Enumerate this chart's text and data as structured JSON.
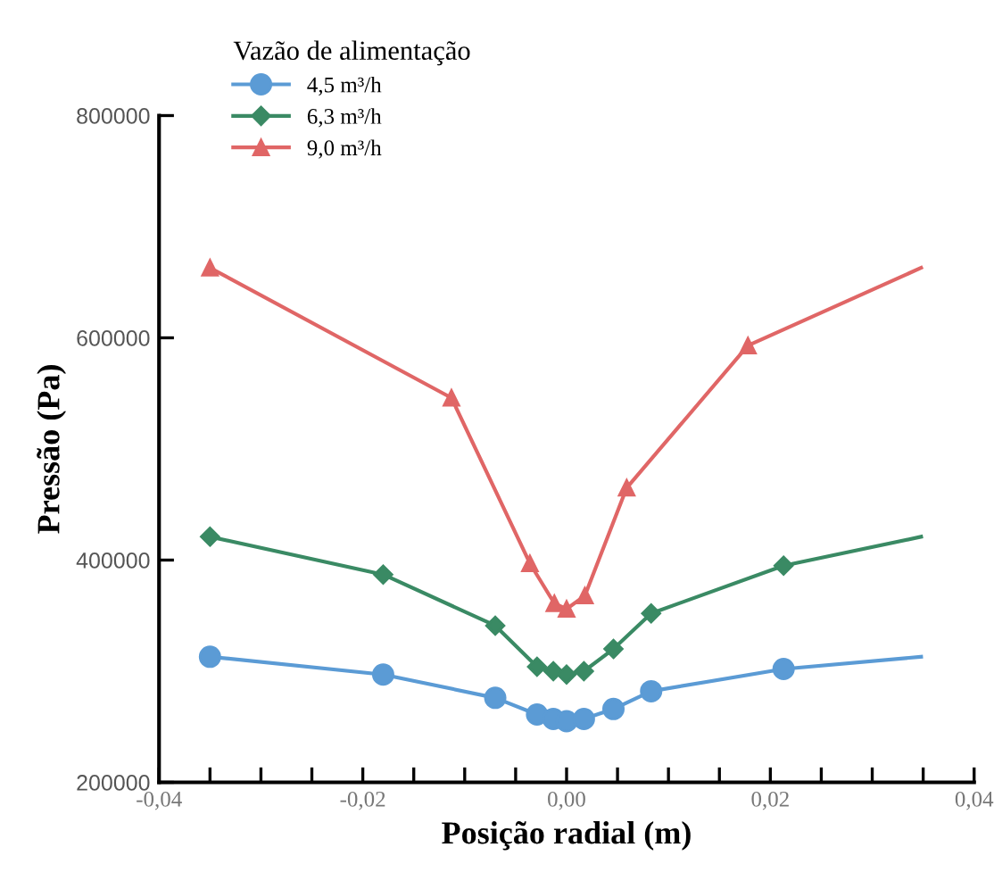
{
  "chart_data": {
    "type": "line",
    "xlabel": "Posição radial (m)",
    "ylabel": "Pressão (Pa)",
    "legend_title": "Vazão de alimentação",
    "legend": "top left",
    "grid": false,
    "xlim": [
      -0.04,
      0.04
    ],
    "ylim": [
      200000,
      800000
    ],
    "xticks": [
      {
        "value": -0.04,
        "label": "-0,04"
      },
      {
        "value": -0.035,
        "label": null
      },
      {
        "value": -0.03,
        "label": null
      },
      {
        "value": -0.025,
        "label": null
      },
      {
        "value": -0.02,
        "label": "-0,02"
      },
      {
        "value": -0.015,
        "label": null
      },
      {
        "value": -0.01,
        "label": null
      },
      {
        "value": -0.005,
        "label": null
      },
      {
        "value": 0,
        "label": "0,00"
      },
      {
        "value": 0.005,
        "label": null
      },
      {
        "value": 0.01,
        "label": null
      },
      {
        "value": 0.015,
        "label": null
      },
      {
        "value": 0.02,
        "label": "0,02"
      },
      {
        "value": 0.025,
        "label": null
      },
      {
        "value": 0.03,
        "label": null
      },
      {
        "value": 0.035,
        "label": null
      },
      {
        "value": 0.04,
        "label": "0,04"
      }
    ],
    "yticks": [
      200000,
      400000,
      600000,
      800000
    ],
    "series": [
      {
        "name": "4,5 m³/h",
        "color": "#5b9bd5",
        "marker": "circle",
        "x": [
          -0.035,
          -0.018,
          -0.007,
          -0.0029,
          -0.0013,
          0,
          0.0017,
          0.0046,
          0.0083,
          0.0213,
          0.0348
        ],
        "values": [
          313000,
          297000,
          276000,
          261000,
          257000,
          255000,
          257000,
          266000,
          282000,
          302000,
          313000
        ]
      },
      {
        "name": "6,3 m³/h",
        "color": "#3a8a64",
        "marker": "diamond",
        "x": [
          -0.035,
          -0.018,
          -0.007,
          -0.0029,
          -0.0013,
          0,
          0.0017,
          0.0046,
          0.0083,
          0.0213,
          0.0348
        ],
        "values": [
          421000,
          387000,
          341000,
          304000,
          300000,
          297000,
          300000,
          320000,
          352000,
          395000,
          421000
        ]
      },
      {
        "name": "9,0 m³/h",
        "color": "#e06666",
        "marker": "triangle",
        "x": [
          -0.035,
          -0.0113,
          -0.0036,
          -0.0012,
          0,
          0.0018,
          0.0059,
          0.0178,
          0.0348
        ],
        "values": [
          663000,
          546000,
          397000,
          361000,
          356000,
          368000,
          465000,
          593000,
          663000
        ]
      }
    ]
  }
}
